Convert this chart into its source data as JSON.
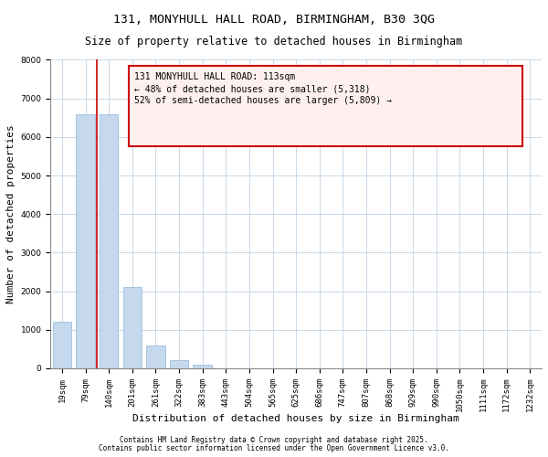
{
  "title1": "131, MONYHULL HALL ROAD, BIRMINGHAM, B30 3QG",
  "title2": "Size of property relative to detached houses in Birmingham",
  "xlabel": "Distribution of detached houses by size in Birmingham",
  "ylabel": "Number of detached properties",
  "bar_color": "#c5d8ed",
  "bar_edge_color": "#8fb8d8",
  "grid_color": "#c8d8e8",
  "categories": [
    "19sqm",
    "79sqm",
    "140sqm",
    "201sqm",
    "261sqm",
    "322sqm",
    "383sqm",
    "443sqm",
    "504sqm",
    "565sqm",
    "625sqm",
    "686sqm",
    "747sqm",
    "807sqm",
    "868sqm",
    "929sqm",
    "990sqm",
    "1050sqm",
    "1111sqm",
    "1172sqm",
    "1232sqm"
  ],
  "values": [
    1200,
    6600,
    6600,
    2100,
    580,
    220,
    90,
    0,
    0,
    0,
    0,
    0,
    0,
    0,
    0,
    0,
    0,
    0,
    0,
    0,
    0
  ],
  "ylim": [
    0,
    8000
  ],
  "yticks": [
    0,
    1000,
    2000,
    3000,
    4000,
    5000,
    6000,
    7000,
    8000
  ],
  "property_line_x": 1.5,
  "property_line_color": "#cc0000",
  "annotation_text": "131 MONYHULL HALL ROAD: 113sqm\n← 48% of detached houses are smaller (5,318)\n52% of semi-detached houses are larger (5,809) →",
  "annotation_box_facecolor": "#fff0f0",
  "annotation_border_color": "#cc0000",
  "footer1": "Contains HM Land Registry data © Crown copyright and database right 2025.",
  "footer2": "Contains public sector information licensed under the Open Government Licence v3.0.",
  "bg_color": "#ffffff",
  "title_fontsize": 9.5,
  "subtitle_fontsize": 8.5,
  "tick_fontsize": 6.5,
  "ylabel_fontsize": 8,
  "xlabel_fontsize": 8,
  "annot_fontsize": 7,
  "footer_fontsize": 5.5
}
